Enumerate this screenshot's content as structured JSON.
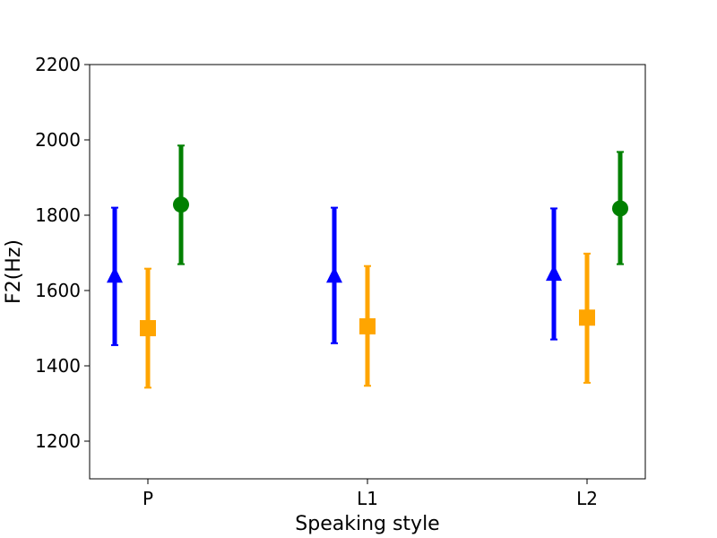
{
  "chart_data": {
    "type": "scatter",
    "title": "",
    "xlabel": "Speaking style",
    "ylabel": "F2(Hz)",
    "categories": [
      "P",
      "L1",
      "L2"
    ],
    "ylim": [
      1100,
      2200
    ],
    "yticks": [
      "1200",
      "1400",
      "1600",
      "1800",
      "2000",
      "2200"
    ],
    "grid": false,
    "series": [
      {
        "color": "#0000ff",
        "marker": "triangle",
        "values": [
          1640,
          1640,
          1645
        ],
        "err_low": [
          1455,
          1460,
          1470
        ],
        "err_high": [
          1820,
          1820,
          1818
        ]
      },
      {
        "color": "#ffa500",
        "marker": "square",
        "values": [
          1500,
          1505,
          1528
        ],
        "err_low": [
          1342,
          1347,
          1355
        ],
        "err_high": [
          1658,
          1665,
          1698
        ]
      },
      {
        "color": "#008000",
        "marker": "circle",
        "values": [
          1828,
          null,
          1818
        ],
        "err_low": [
          1670,
          null,
          1670
        ],
        "err_high": [
          1985,
          null,
          1968
        ]
      }
    ]
  }
}
